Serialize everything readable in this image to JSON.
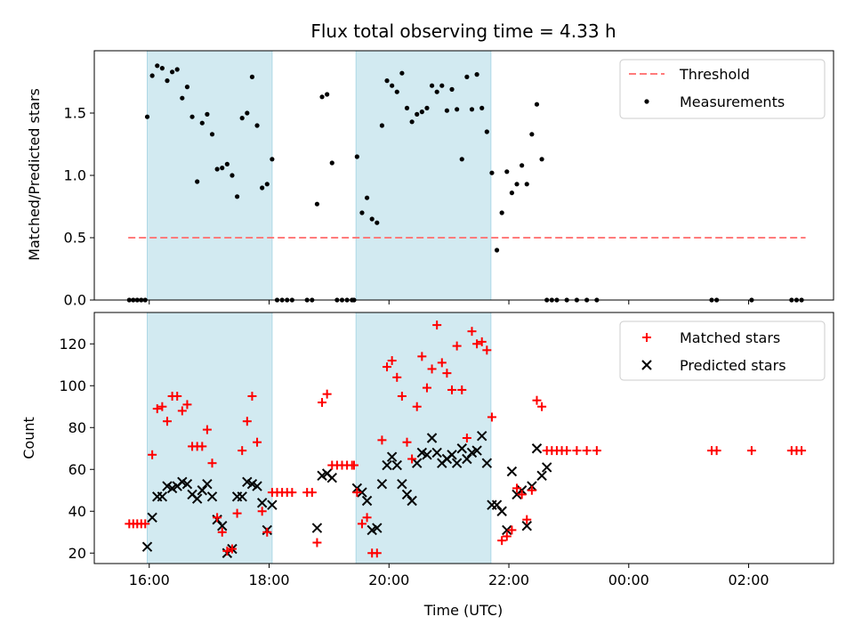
{
  "title": "Flux total observing time = 4.33 h",
  "chart_data": [
    {
      "type": "scatter",
      "ylabel": "Matched/Predicted stars",
      "ylim": [
        0,
        2.0
      ],
      "yticks": [
        0.0,
        0.5,
        1.0,
        1.5
      ],
      "ytick_labels": [
        "0.0",
        "0.5",
        "1.0",
        "1.5"
      ],
      "shaded_intervals": [
        [
          "15:58",
          "18:03"
        ],
        [
          "19:27",
          "21:42"
        ]
      ],
      "shade_color": "#add8e6",
      "legend_position": "top-right",
      "legend": [
        {
          "label": "Threshold",
          "style": "dashed-line",
          "color": "#ff7b7b"
        },
        {
          "label": "Measurements",
          "style": "dot",
          "color": "#000000"
        }
      ],
      "threshold": {
        "name": "Threshold",
        "y": 0.5,
        "x_start": "15:39",
        "x_end": "02:57",
        "color": "#ff7b7b"
      },
      "measurements": {
        "name": "Measurements",
        "color": "#000000",
        "points": [
          [
            "15:40",
            0
          ],
          [
            "15:44",
            0
          ],
          [
            "15:48",
            0
          ],
          [
            "15:52",
            0
          ],
          [
            "15:56",
            0
          ],
          [
            "15:58",
            1.47
          ],
          [
            "16:03",
            1.8
          ],
          [
            "16:08",
            1.88
          ],
          [
            "16:13",
            1.86
          ],
          [
            "16:18",
            1.76
          ],
          [
            "16:23",
            1.83
          ],
          [
            "16:28",
            1.85
          ],
          [
            "16:33",
            1.62
          ],
          [
            "16:38",
            1.71
          ],
          [
            "16:43",
            1.47
          ],
          [
            "16:48",
            0.95
          ],
          [
            "16:53",
            1.42
          ],
          [
            "16:58",
            1.49
          ],
          [
            "17:03",
            1.33
          ],
          [
            "17:08",
            1.05
          ],
          [
            "17:13",
            1.06
          ],
          [
            "17:18",
            1.09
          ],
          [
            "17:23",
            1.0
          ],
          [
            "17:28",
            0.83
          ],
          [
            "17:33",
            1.46
          ],
          [
            "17:38",
            1.5
          ],
          [
            "17:43",
            1.79
          ],
          [
            "17:48",
            1.4
          ],
          [
            "17:53",
            0.9
          ],
          [
            "17:58",
            0.93
          ],
          [
            "18:03",
            1.13
          ],
          [
            "18:08",
            0
          ],
          [
            "18:13",
            0
          ],
          [
            "18:18",
            0
          ],
          [
            "18:23",
            0
          ],
          [
            "18:38",
            0
          ],
          [
            "18:43",
            0
          ],
          [
            "18:48",
            0.77
          ],
          [
            "18:53",
            1.63
          ],
          [
            "18:58",
            1.65
          ],
          [
            "19:03",
            1.1
          ],
          [
            "19:08",
            0
          ],
          [
            "19:13",
            0
          ],
          [
            "19:18",
            0
          ],
          [
            "19:23",
            0
          ],
          [
            "19:25",
            0
          ],
          [
            "19:28",
            1.15
          ],
          [
            "19:33",
            0.7
          ],
          [
            "19:38",
            0.82
          ],
          [
            "19:43",
            0.65
          ],
          [
            "19:48",
            0.62
          ],
          [
            "19:53",
            1.4
          ],
          [
            "19:58",
            1.76
          ],
          [
            "20:03",
            1.72
          ],
          [
            "20:08",
            1.67
          ],
          [
            "20:13",
            1.82
          ],
          [
            "20:18",
            1.54
          ],
          [
            "20:23",
            1.43
          ],
          [
            "20:28",
            1.49
          ],
          [
            "20:33",
            1.51
          ],
          [
            "20:38",
            1.54
          ],
          [
            "20:43",
            1.72
          ],
          [
            "20:48",
            1.67
          ],
          [
            "20:53",
            1.72
          ],
          [
            "20:58",
            1.52
          ],
          [
            "21:03",
            1.69
          ],
          [
            "21:08",
            1.53
          ],
          [
            "21:13",
            1.13
          ],
          [
            "21:18",
            1.79
          ],
          [
            "21:23",
            1.53
          ],
          [
            "21:28",
            1.81
          ],
          [
            "21:33",
            1.54
          ],
          [
            "21:38",
            1.35
          ],
          [
            "21:43",
            1.02
          ],
          [
            "21:48",
            0.4
          ],
          [
            "21:53",
            0.7
          ],
          [
            "21:58",
            1.03
          ],
          [
            "22:03",
            0.86
          ],
          [
            "22:08",
            0.93
          ],
          [
            "22:13",
            1.08
          ],
          [
            "22:18",
            0.93
          ],
          [
            "22:23",
            1.33
          ],
          [
            "22:28",
            1.57
          ],
          [
            "22:33",
            1.13
          ],
          [
            "22:38",
            0
          ],
          [
            "22:43",
            0
          ],
          [
            "22:48",
            0
          ],
          [
            "22:58",
            0
          ],
          [
            "23:08",
            0
          ],
          [
            "23:18",
            0
          ],
          [
            "23:28",
            0
          ],
          [
            "01:23",
            0
          ],
          [
            "01:28",
            0
          ],
          [
            "02:03",
            0
          ],
          [
            "02:43",
            0
          ],
          [
            "02:48",
            0
          ],
          [
            "02:53",
            0
          ]
        ]
      }
    },
    {
      "type": "scatter",
      "xlabel": "Time (UTC)",
      "ylabel": "Count",
      "ylim": [
        15,
        135
      ],
      "yticks": [
        20,
        40,
        60,
        80,
        100,
        120
      ],
      "ytick_labels": [
        "20",
        "40",
        "60",
        "80",
        "100",
        "120"
      ],
      "xticks": [
        "16:00",
        "18:00",
        "20:00",
        "22:00",
        "00:00",
        "02:00"
      ],
      "x_range": [
        "15:05",
        "03:25"
      ],
      "shaded_intervals": [
        [
          "15:58",
          "18:03"
        ],
        [
          "19:27",
          "21:42"
        ]
      ],
      "shade_color": "#add8e6",
      "legend_position": "top-right",
      "legend": [
        {
          "label": "Matched stars",
          "style": "plus",
          "color": "#ff0000"
        },
        {
          "label": "Predicted stars",
          "style": "x",
          "color": "#000000"
        }
      ],
      "series": [
        {
          "name": "Matched stars",
          "marker": "plus",
          "color": "#ff0000",
          "points": [
            [
              "15:40",
              34
            ],
            [
              "15:44",
              34
            ],
            [
              "15:48",
              34
            ],
            [
              "15:52",
              34
            ],
            [
              "15:56",
              34
            ],
            [
              "16:03",
              67
            ],
            [
              "16:08",
              89
            ],
            [
              "16:13",
              90
            ],
            [
              "16:18",
              83
            ],
            [
              "16:23",
              95
            ],
            [
              "16:28",
              95
            ],
            [
              "16:33",
              88
            ],
            [
              "16:38",
              91
            ],
            [
              "16:43",
              71
            ],
            [
              "16:48",
              71
            ],
            [
              "16:53",
              71
            ],
            [
              "16:58",
              79
            ],
            [
              "17:03",
              63
            ],
            [
              "17:08",
              37
            ],
            [
              "17:13",
              30
            ],
            [
              "17:18",
              21
            ],
            [
              "17:23",
              22
            ],
            [
              "17:28",
              39
            ],
            [
              "17:33",
              69
            ],
            [
              "17:38",
              83
            ],
            [
              "17:43",
              95
            ],
            [
              "17:48",
              73
            ],
            [
              "17:53",
              40
            ],
            [
              "17:58",
              30
            ],
            [
              "18:03",
              49
            ],
            [
              "18:08",
              49
            ],
            [
              "18:13",
              49
            ],
            [
              "18:18",
              49
            ],
            [
              "18:23",
              49
            ],
            [
              "18:38",
              49
            ],
            [
              "18:43",
              49
            ],
            [
              "18:48",
              25
            ],
            [
              "18:53",
              92
            ],
            [
              "18:58",
              96
            ],
            [
              "19:03",
              62
            ],
            [
              "19:08",
              62
            ],
            [
              "19:13",
              62
            ],
            [
              "19:18",
              62
            ],
            [
              "19:23",
              62
            ],
            [
              "19:25",
              62
            ],
            [
              "19:28",
              49
            ],
            [
              "19:33",
              34
            ],
            [
              "19:38",
              37
            ],
            [
              "19:43",
              20
            ],
            [
              "19:48",
              20
            ],
            [
              "19:53",
              74
            ],
            [
              "19:58",
              109
            ],
            [
              "20:03",
              112
            ],
            [
              "20:08",
              104
            ],
            [
              "20:13",
              95
            ],
            [
              "20:18",
              73
            ],
            [
              "20:23",
              65
            ],
            [
              "20:28",
              90
            ],
            [
              "20:33",
              114
            ],
            [
              "20:38",
              99
            ],
            [
              "20:43",
              108
            ],
            [
              "20:48",
              129
            ],
            [
              "20:53",
              111
            ],
            [
              "20:58",
              106
            ],
            [
              "21:03",
              98
            ],
            [
              "21:08",
              119
            ],
            [
              "21:13",
              98
            ],
            [
              "21:18",
              75
            ],
            [
              "21:23",
              126
            ],
            [
              "21:28",
              120
            ],
            [
              "21:33",
              121
            ],
            [
              "21:38",
              117
            ],
            [
              "21:43",
              85
            ],
            [
              "21:53",
              26
            ],
            [
              "21:58",
              28
            ],
            [
              "22:03",
              31
            ],
            [
              "22:08",
              51
            ],
            [
              "22:13",
              48
            ],
            [
              "22:18",
              36
            ],
            [
              "22:23",
              50
            ],
            [
              "22:28",
              93
            ],
            [
              "22:33",
              90
            ],
            [
              "22:38",
              69
            ],
            [
              "22:43",
              69
            ],
            [
              "22:48",
              69
            ],
            [
              "22:53",
              69
            ],
            [
              "22:58",
              69
            ],
            [
              "23:08",
              69
            ],
            [
              "23:18",
              69
            ],
            [
              "23:28",
              69
            ],
            [
              "01:23",
              69
            ],
            [
              "01:28",
              69
            ],
            [
              "02:03",
              69
            ],
            [
              "02:43",
              69
            ],
            [
              "02:48",
              69
            ],
            [
              "02:53",
              69
            ]
          ]
        },
        {
          "name": "Predicted stars",
          "marker": "x",
          "color": "#000000",
          "points": [
            [
              "15:58",
              23
            ],
            [
              "16:03",
              37
            ],
            [
              "16:08",
              47
            ],
            [
              "16:13",
              47
            ],
            [
              "16:18",
              52
            ],
            [
              "16:23",
              51
            ],
            [
              "16:28",
              52
            ],
            [
              "16:33",
              54
            ],
            [
              "16:38",
              53
            ],
            [
              "16:43",
              48
            ],
            [
              "16:48",
              46
            ],
            [
              "16:53",
              50
            ],
            [
              "16:58",
              53
            ],
            [
              "17:03",
              47
            ],
            [
              "17:08",
              36
            ],
            [
              "17:13",
              33
            ],
            [
              "17:18",
              20
            ],
            [
              "17:23",
              22
            ],
            [
              "17:28",
              47
            ],
            [
              "17:33",
              47
            ],
            [
              "17:38",
              54
            ],
            [
              "17:43",
              53
            ],
            [
              "17:48",
              52
            ],
            [
              "17:53",
              44
            ],
            [
              "17:58",
              31
            ],
            [
              "18:03",
              43
            ],
            [
              "18:48",
              32
            ],
            [
              "18:53",
              57
            ],
            [
              "18:58",
              58
            ],
            [
              "19:03",
              56
            ],
            [
              "19:28",
              51
            ],
            [
              "19:33",
              49
            ],
            [
              "19:38",
              45
            ],
            [
              "19:43",
              31
            ],
            [
              "19:48",
              32
            ],
            [
              "19:53",
              53
            ],
            [
              "19:58",
              62
            ],
            [
              "20:03",
              66
            ],
            [
              "20:08",
              62
            ],
            [
              "20:13",
              53
            ],
            [
              "20:18",
              48
            ],
            [
              "20:23",
              45
            ],
            [
              "20:28",
              63
            ],
            [
              "20:33",
              68
            ],
            [
              "20:38",
              67
            ],
            [
              "20:43",
              75
            ],
            [
              "20:48",
              68
            ],
            [
              "20:53",
              63
            ],
            [
              "20:58",
              65
            ],
            [
              "21:03",
              67
            ],
            [
              "21:08",
              63
            ],
            [
              "21:13",
              70
            ],
            [
              "21:18",
              65
            ],
            [
              "21:23",
              68
            ],
            [
              "21:28",
              69
            ],
            [
              "21:33",
              76
            ],
            [
              "21:38",
              63
            ],
            [
              "21:43",
              43
            ],
            [
              "21:48",
              43
            ],
            [
              "21:53",
              40
            ],
            [
              "21:58",
              31
            ],
            [
              "22:03",
              59
            ],
            [
              "22:08",
              48
            ],
            [
              "22:13",
              50
            ],
            [
              "22:18",
              33
            ],
            [
              "22:23",
              52
            ],
            [
              "22:28",
              70
            ],
            [
              "22:33",
              57
            ],
            [
              "22:38",
              61
            ]
          ]
        }
      ]
    }
  ]
}
